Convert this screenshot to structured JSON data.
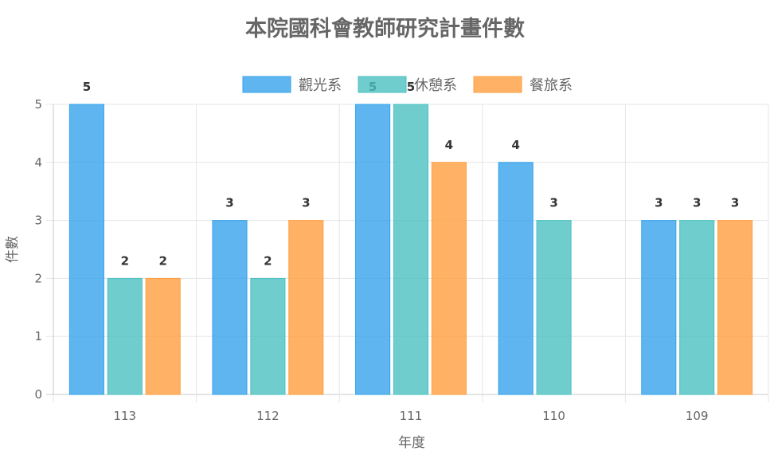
{
  "chart_data": {
    "type": "bar",
    "title": "本院國科會教師研究計畫件數",
    "xlabel": "年度",
    "ylabel": "件數",
    "categories": [
      "113",
      "112",
      "111",
      "110",
      "109"
    ],
    "ylim": [
      0,
      5
    ],
    "yticks": [
      0,
      1,
      2,
      3,
      4,
      5
    ],
    "grid": true,
    "legend_position": "top",
    "series": [
      {
        "name": "觀光系",
        "values": [
          5,
          3,
          5,
          4,
          3
        ],
        "color": "#36A2EB"
      },
      {
        "name": "休憩系",
        "values": [
          2,
          2,
          5,
          3,
          3
        ],
        "color": "#4BC0C0"
      },
      {
        "name": "餐旅系",
        "values": [
          2,
          3,
          4,
          null,
          3
        ],
        "color": "#FF9F40"
      }
    ]
  }
}
